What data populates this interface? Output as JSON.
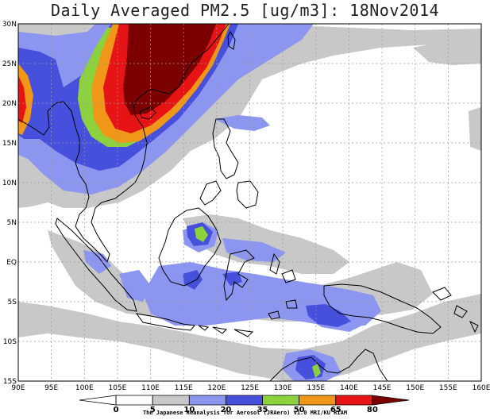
{
  "title": "Daily Averaged PM2.5 [ug/m3]: 18Nov2014",
  "lat_labels": [
    "30N",
    "25N",
    "20N",
    "15N",
    "10N",
    "5N",
    "EQ",
    "5S",
    "10S",
    "15S"
  ],
  "lon_labels": [
    "90E",
    "95E",
    "100E",
    "105E",
    "110E",
    "115E",
    "120E",
    "125E",
    "130E",
    "135E",
    "140E",
    "145E",
    "150E",
    "155E",
    "160E"
  ],
  "colorbar": {
    "levels": [
      "0",
      "5",
      "10",
      "20",
      "35",
      "50",
      "65",
      "80"
    ],
    "colors": [
      "#ffffff",
      "#ffffff",
      "#c8c8c8",
      "#8c96f0",
      "#4650dc",
      "#8cd23c",
      "#f09619",
      "#e61414",
      "#7d0000"
    ]
  },
  "credit": "The Japanese Reanalysis for Aerosol (JRAero) v1.0  MRI/KU RIAM"
}
